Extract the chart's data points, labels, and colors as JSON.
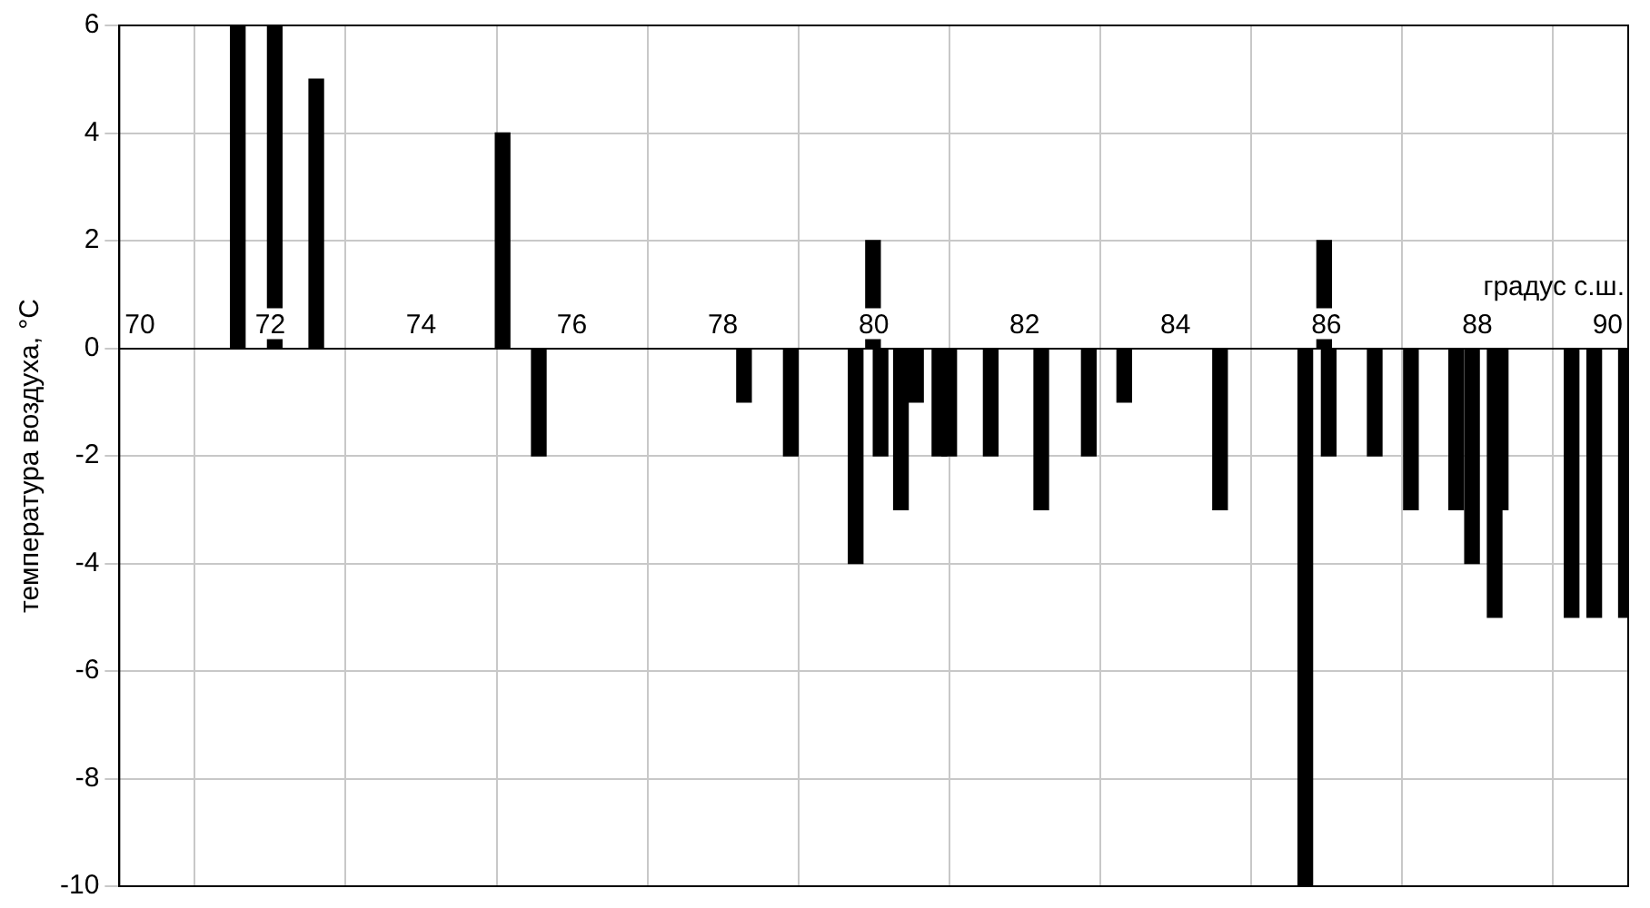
{
  "chart_data": {
    "type": "bar",
    "xlabel": "градус с.ш.",
    "ylabel": "температура воздуха, °C",
    "x": [
      71.57,
      72.06,
      72.61,
      75.08,
      75.56,
      78.28,
      78.9,
      79.76,
      79.99,
      80.09,
      80.36,
      80.56,
      80.87,
      81.0,
      81.55,
      82.17,
      82.22,
      82.85,
      83.32,
      84.59,
      85.63,
      85.72,
      85.97,
      86.03,
      86.64,
      87.12,
      87.72,
      87.93,
      88.23,
      88.31,
      89.25,
      89.55,
      89.97
    ],
    "values": [
      6,
      6,
      5,
      4,
      -2,
      -1,
      -2,
      -4,
      2,
      -2,
      -3,
      -1,
      -2,
      -2,
      -2,
      null,
      -3,
      -2,
      -1,
      -3,
      null,
      -10,
      2,
      -2,
      -2,
      -3,
      -3,
      -4,
      -5,
      -3,
      -5,
      -5,
      -5
    ],
    "color": "#000000",
    "xlim": [
      70,
      90
    ],
    "xticks": [
      70,
      72,
      74,
      76,
      78,
      80,
      82,
      84,
      86,
      88,
      90
    ],
    "ylim": [
      -10,
      6
    ],
    "yticks": [
      -10,
      -8,
      -6,
      -4,
      -2,
      0,
      2,
      4,
      6
    ],
    "grid": true,
    "legend": false
  }
}
